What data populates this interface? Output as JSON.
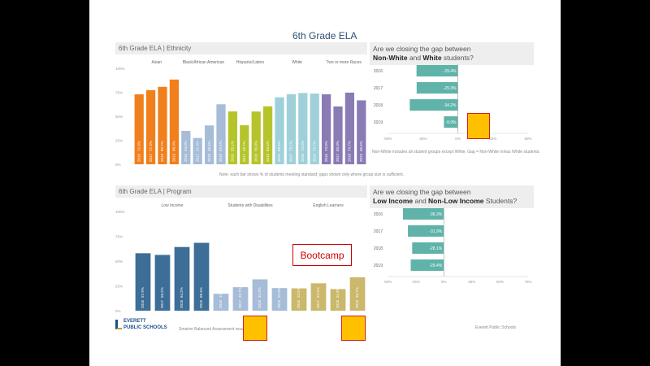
{
  "title": "6th Grade ELA",
  "ethnicity": {
    "header": "6th Grade ELA | Ethnicity",
    "groups": [
      "Asian",
      "Black/African American",
      "Hispanic/Latino",
      "White",
      "Two or more Races"
    ],
    "y_ticks": [
      "100%",
      "75%",
      "50%",
      "25%",
      "0%"
    ],
    "chart_data": {
      "type": "bar",
      "ylim": [
        0,
        100
      ],
      "bars": [
        {
          "group": "Asian",
          "year": "2016",
          "value": 72.9,
          "color": "#f07f1c",
          "label": "72.9%"
        },
        {
          "group": "Asian",
          "year": "2017",
          "value": 77.3,
          "color": "#f07f1c",
          "label": "77.3%"
        },
        {
          "group": "Asian",
          "year": "2018",
          "value": 80.7,
          "color": "#f07f1c",
          "label": "80.7%"
        },
        {
          "group": "Asian",
          "year": "2019",
          "value": 88.3,
          "color": "#f07f1c",
          "label": "88.3%"
        },
        {
          "group": "Black/African American",
          "year": "2016",
          "value": 34.8,
          "color": "#a6bcd8",
          "label": "34.8%"
        },
        {
          "group": "Black/African American",
          "year": "2017",
          "value": 27.4,
          "color": "#a6bcd8",
          "label": "27.4%"
        },
        {
          "group": "Black/African American",
          "year": "2018",
          "value": 40.5,
          "color": "#a6bcd8",
          "label": "40.5%"
        },
        {
          "group": "Black/African American",
          "year": "2019",
          "value": 62.5,
          "color": "#a6bcd8",
          "label": "62.5%"
        },
        {
          "group": "Hispanic/Latino",
          "year": "2016",
          "value": 55.1,
          "color": "#b5c42b",
          "label": "55.1%"
        },
        {
          "group": "Hispanic/Latino",
          "year": "2017",
          "value": 40.7,
          "color": "#b5c42b",
          "label": "40.7%"
        },
        {
          "group": "Hispanic/Latino",
          "year": "2018",
          "value": 55.0,
          "color": "#b5c42b",
          "label": "55.0%"
        },
        {
          "group": "Hispanic/Latino",
          "year": "2019",
          "value": 60.4,
          "color": "#b5c42b",
          "label": "60.4%"
        },
        {
          "group": "White",
          "year": "2016",
          "value": 69.8,
          "color": "#9fd0da",
          "label": "69.8%"
        },
        {
          "group": "White",
          "year": "2017",
          "value": 73.1,
          "color": "#9fd0da",
          "label": "73.1%"
        },
        {
          "group": "White",
          "year": "2018",
          "value": 74.3,
          "color": "#9fd0da",
          "label": "74.3%"
        },
        {
          "group": "White",
          "year": "2019",
          "value": 73.7,
          "color": "#9fd0da",
          "label": "73.7%"
        },
        {
          "group": "Two or more Races",
          "year": "2016",
          "value": 73.0,
          "color": "#8a7bb5",
          "label": "73.0%"
        },
        {
          "group": "Two or more Races",
          "year": "2017",
          "value": 60.3,
          "color": "#8a7bb5",
          "label": "60.3%"
        },
        {
          "group": "Two or more Races",
          "year": "2018",
          "value": 74.7,
          "color": "#8a7bb5",
          "label": "74.7%"
        },
        {
          "group": "Two or more Races",
          "year": "2019",
          "value": 66.6,
          "color": "#8a7bb5",
          "label": "66.6%"
        }
      ]
    }
  },
  "program": {
    "header": "6th Grade ELA | Program",
    "groups": [
      "Low Income",
      "Students with Disabilities",
      "English Learners"
    ],
    "y_ticks": [
      "100%",
      "75%",
      "50%",
      "25%",
      "0%"
    ],
    "chart_data": {
      "type": "bar",
      "ylim": [
        0,
        100
      ],
      "bars": [
        {
          "group": "Low Income",
          "year": "2016",
          "value": 57.9,
          "color": "#3c6e98",
          "label": "57.9%"
        },
        {
          "group": "Low Income",
          "year": "2017",
          "value": 56.2,
          "color": "#3c6e98",
          "label": "56.2%"
        },
        {
          "group": "Low Income",
          "year": "2018",
          "value": 64.2,
          "color": "#3c6e98",
          "label": "64.2%"
        },
        {
          "group": "Low Income",
          "year": "2019",
          "value": 68.4,
          "color": "#3c6e98",
          "label": "68.4%"
        },
        {
          "group": "Students with Disabilities",
          "year": "2016",
          "value": 17.1,
          "color": "#a6bcd8",
          "label": "17.1%"
        },
        {
          "group": "Students with Disabilities",
          "year": "2017",
          "value": 23.7,
          "color": "#a6bcd8",
          "label": "23.7%"
        },
        {
          "group": "Students with Disabilities",
          "year": "2018",
          "value": 31.6,
          "color": "#a6bcd8",
          "label": "31.6%"
        },
        {
          "group": "Students with Disabilities",
          "year": "2019",
          "value": 22.8,
          "color": "#a6bcd8",
          "label": "22.8%"
        },
        {
          "group": "English Learners",
          "year": "2016",
          "value": 22.5,
          "color": "#cbb86c",
          "label": "22.5%"
        },
        {
          "group": "English Learners",
          "year": "2017",
          "value": 27.6,
          "color": "#cbb86c",
          "label": "27.6%"
        },
        {
          "group": "English Learners",
          "year": "2018",
          "value": 21.8,
          "color": "#cbb86c",
          "label": "21.8%"
        },
        {
          "group": "English Learners",
          "year": "2019",
          "value": 33.7,
          "color": "#cbb86c",
          "label": "33.7%"
        }
      ]
    }
  },
  "ethnicity_gap": {
    "header_line1": "Are we closing the gap between",
    "header_line2_a": "Non-White",
    "header_line2_b": " and ",
    "header_line2_c": "White",
    "header_line2_d": " students?",
    "x_ticks": [
      "-50%",
      "-25%",
      "0%",
      "25%",
      "50%"
    ],
    "chart_data": {
      "type": "bar",
      "orientation": "horizontal",
      "xlim": [
        -50,
        50
      ],
      "color": "#5fb3a8",
      "rows": [
        {
          "year": "2016",
          "value": -29.4,
          "label": "-29.4%"
        },
        {
          "year": "2017",
          "value": -29.3,
          "label": "-29.3%"
        },
        {
          "year": "2018",
          "value": -34.2,
          "label": "-34.2%"
        },
        {
          "year": "2019",
          "value": -9.9,
          "label": "-9.9%"
        }
      ]
    },
    "footnote": "Non-White includes all student groups except White. Gap = Non-White minus White students."
  },
  "income_gap": {
    "header_line1": "Are we closing the gap between",
    "header_line2_a": "Low Income",
    "header_line2_b": " and ",
    "header_line2_c": "Non-Low Income",
    "header_line2_d": " Students?",
    "x_ticks": [
      "-50%",
      "-25%",
      "0%",
      "25%",
      "50%",
      "75%"
    ],
    "chart_data": {
      "type": "bar",
      "orientation": "horizontal",
      "xlim": [
        -50,
        75
      ],
      "color": "#5fb3a8",
      "rows": [
        {
          "year": "2016",
          "value": -36.3,
          "label": "-36.3%"
        },
        {
          "year": "2017",
          "value": -31.9,
          "label": "-31.9%"
        },
        {
          "year": "2018",
          "value": -28.1,
          "label": "-28.1%"
        },
        {
          "year": "2019",
          "value": -29.4,
          "label": "-29.4%"
        }
      ]
    }
  },
  "notes": {
    "middle": "Note: each bar shows % of students meeting standard; gaps shown only where group size is sufficient.",
    "bottom_left": "Smarter Balanced Assessment results",
    "bottom_right": "Everett Public Schools"
  },
  "logo": {
    "line1": "EVERETT",
    "line2": "PUBLIC SCHOOLS"
  },
  "callout": {
    "text": "Bootcamp"
  },
  "colors": {
    "title": "#2f4f75",
    "gap_bar": "#5fb3a8",
    "sticky_fill": "#ffc000",
    "sticky_border": "#d02020",
    "callout_text": "#d00000"
  }
}
